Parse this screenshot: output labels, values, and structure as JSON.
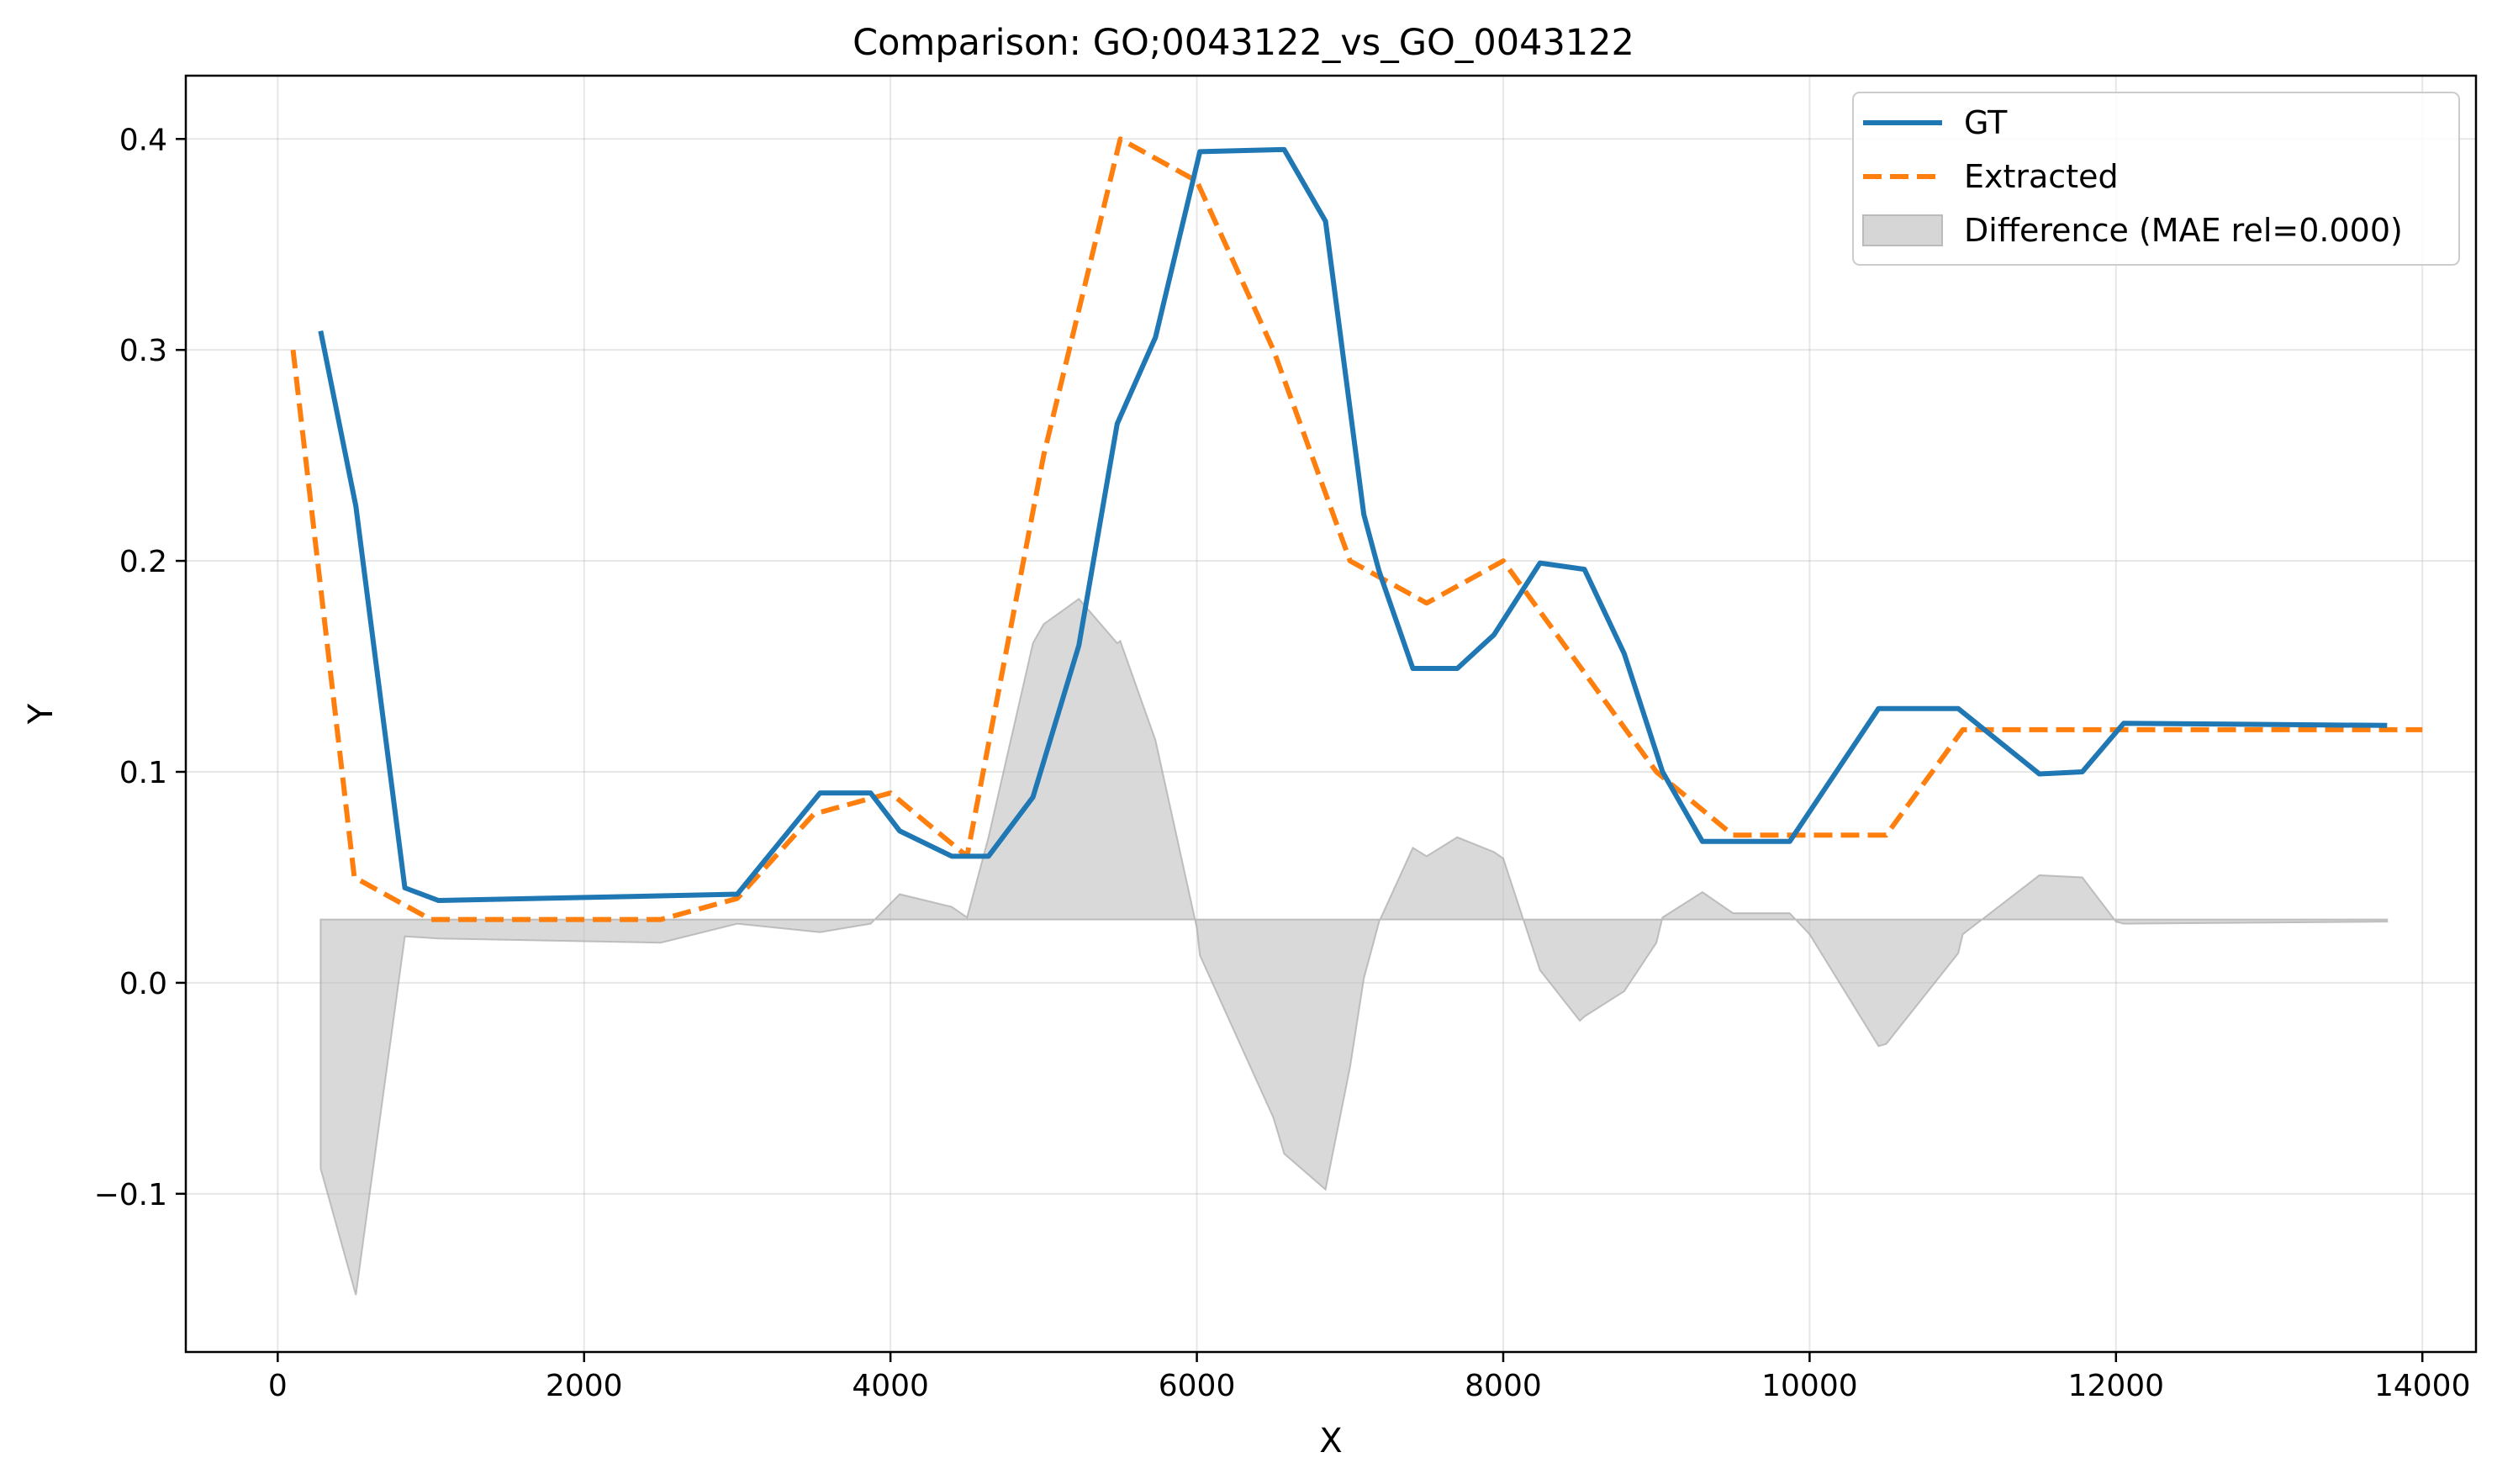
{
  "chart_data": {
    "type": "line",
    "title": "Comparison: GO;0043122_vs_GO_0043122",
    "xlabel": "X",
    "ylabel": "Y",
    "xlim": [
      -600,
      14350
    ],
    "ylim": [
      -0.175,
      0.43
    ],
    "xticks": [
      0,
      2000,
      4000,
      6000,
      8000,
      10000,
      12000,
      14000
    ],
    "xtick_labels": [
      "0",
      "2000",
      "4000",
      "6000",
      "8000",
      "10000",
      "12000",
      "14000"
    ],
    "yticks": [
      -0.1,
      0.0,
      0.1,
      0.2,
      0.3,
      0.4
    ],
    "ytick_labels": [
      "−0.1",
      "0.0",
      "0.1",
      "0.2",
      "0.3",
      "0.4"
    ],
    "grid": true,
    "legend_position": "top-right",
    "series": [
      {
        "name": "GT",
        "style": "solid",
        "color": "#1f77b4",
        "x": [
          280,
          510,
          830,
          1050,
          3000,
          3540,
          3870,
          4060,
          4400,
          4640,
          4930,
          5230,
          5480,
          5730,
          6020,
          6570,
          6840,
          7090,
          7190,
          7410,
          7700,
          7940,
          8240,
          8530,
          8790,
          9040,
          9300,
          9870,
          10450,
          10970,
          11500,
          11780,
          12050,
          13770
        ],
        "y": [
          0.309,
          0.226,
          0.045,
          0.039,
          0.042,
          0.09,
          0.09,
          0.072,
          0.06,
          0.06,
          0.088,
          0.16,
          0.265,
          0.306,
          0.394,
          0.395,
          0.361,
          0.222,
          0.195,
          0.149,
          0.149,
          0.165,
          0.199,
          0.196,
          0.156,
          0.1,
          0.067,
          0.067,
          0.13,
          0.13,
          0.099,
          0.1,
          0.123,
          0.122
        ]
      },
      {
        "name": "Extracted",
        "style": "dashed",
        "color": "#ff7f0e",
        "x": [
          100,
          500,
          1000,
          2500,
          3000,
          3500,
          4000,
          4500,
          5000,
          5500,
          6000,
          6500,
          7000,
          7500,
          8000,
          8500,
          9000,
          9500,
          10000,
          10500,
          11000,
          11500,
          12000,
          12500,
          13000,
          13500,
          14000
        ],
        "y": [
          0.3,
          0.05,
          0.03,
          0.03,
          0.04,
          0.08,
          0.09,
          0.06,
          0.25,
          0.4,
          0.38,
          0.3,
          0.2,
          0.18,
          0.2,
          0.15,
          0.1,
          0.07,
          0.07,
          0.07,
          0.12,
          0.12,
          0.12,
          0.12,
          0.12,
          0.12,
          0.12
        ]
      },
      {
        "name": "Difference (MAE rel=0.000)",
        "style": "fill",
        "color": "#bbbbbb",
        "baseline": 0.03,
        "x": [
          280,
          510,
          830,
          1050,
          2500,
          3000,
          3540,
          3870,
          4060,
          4400,
          4500,
          4640,
          4930,
          5000,
          5230,
          5480,
          5500,
          5730,
          6000,
          6020,
          6500,
          6570,
          6840,
          7000,
          7090,
          7190,
          7410,
          7500,
          7700,
          7940,
          8000,
          8240,
          8500,
          8530,
          8790,
          9000,
          9040,
          9300,
          9500,
          9870,
          10000,
          10450,
          10500,
          10970,
          11000,
          11500,
          11780,
          12000,
          12050,
          13770
        ],
        "y": [
          -0.088,
          -0.148,
          0.022,
          0.021,
          0.019,
          0.028,
          0.024,
          0.028,
          0.042,
          0.036,
          0.031,
          0.069,
          0.161,
          0.17,
          0.182,
          0.161,
          0.162,
          0.115,
          0.026,
          0.013,
          -0.064,
          -0.081,
          -0.098,
          -0.04,
          0.002,
          0.029,
          0.064,
          0.06,
          0.069,
          0.062,
          0.059,
          0.006,
          -0.018,
          -0.016,
          -0.004,
          0.019,
          0.031,
          0.043,
          0.033,
          0.033,
          0.023,
          -0.03,
          -0.029,
          0.014,
          0.023,
          0.051,
          0.05,
          0.029,
          0.028,
          0.029
        ]
      }
    ]
  }
}
